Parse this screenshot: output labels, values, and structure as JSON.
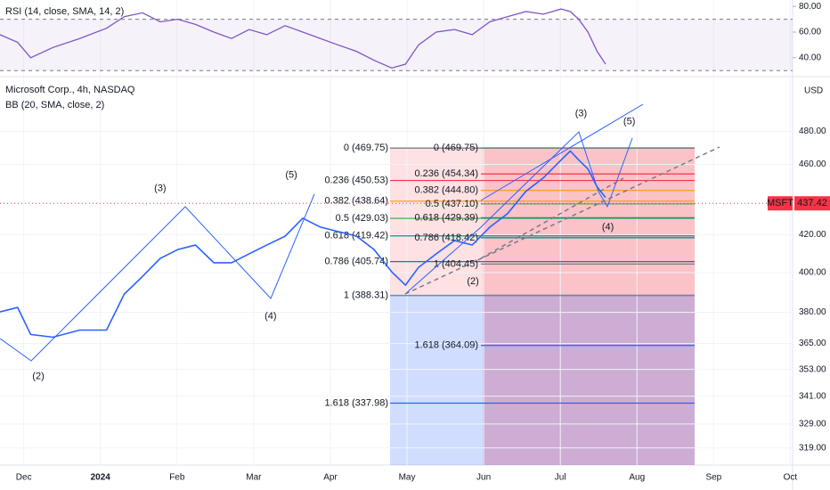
{
  "chart_data": {
    "type": "line",
    "title": "Microsoft Corp., 4h, NASDAQ",
    "subtitle": "BB (20, SMA, close, 2)",
    "currency": "USD",
    "symbol": "MSFT",
    "last_price": 437.42,
    "last_price_label": "437.42",
    "log_scale": true,
    "grid": true,
    "color": "#2962ff",
    "x": [
      -0.31,
      -0.08,
      0.09,
      0.38,
      0.73,
      1.08,
      1.31,
      1.55,
      1.78,
      2.01,
      2.24,
      2.48,
      2.71,
      2.94,
      3.17,
      3.41,
      3.64,
      3.87,
      4.1,
      4.34,
      4.57,
      4.8,
      4.98,
      5.15,
      5.38,
      5.62,
      5.85,
      6.08,
      6.31,
      6.55,
      6.78,
      7.01,
      7.13,
      7.24,
      7.36,
      7.48,
      7.59
    ],
    "values": [
      380.2,
      382.4,
      369.3,
      368.0,
      371.4,
      371.4,
      389.0,
      398.1,
      407.4,
      412.1,
      414.5,
      405.1,
      405.1,
      409.8,
      414.5,
      419.3,
      429.1,
      424.2,
      421.8,
      419.3,
      412.1,
      400.4,
      393.6,
      402.7,
      409.8,
      416.9,
      414.5,
      424.2,
      431.6,
      444.2,
      452.1,
      462.6,
      468.0,
      462.6,
      457.3,
      446.8,
      440.7
    ],
    "xlim": [
      -0.31,
      10.03
    ],
    "ylim": [
      312,
      514
    ],
    "xticks": [
      {
        "value": 0,
        "label": "Dec"
      },
      {
        "value": 1,
        "label": "2024"
      },
      {
        "value": 2,
        "label": "Feb"
      },
      {
        "value": 3,
        "label": "Mar"
      },
      {
        "value": 4,
        "label": "Apr"
      },
      {
        "value": 5,
        "label": "May"
      },
      {
        "value": 6,
        "label": "Jun"
      },
      {
        "value": 7,
        "label": "Jul"
      },
      {
        "value": 8,
        "label": "Aug"
      },
      {
        "value": 9,
        "label": "Sep"
      },
      {
        "value": 10,
        "label": "Oct"
      }
    ],
    "yticks": [
      {
        "value": 319,
        "label": "319.00"
      },
      {
        "value": 329,
        "label": "329.00"
      },
      {
        "value": 341,
        "label": "341.00"
      },
      {
        "value": 353,
        "label": "353.00"
      },
      {
        "value": 365,
        "label": "365.00"
      },
      {
        "value": 380,
        "label": "380.00"
      },
      {
        "value": 400,
        "label": "400.00"
      },
      {
        "value": 420,
        "label": "420.00"
      },
      {
        "value": 460,
        "label": "460.00"
      },
      {
        "value": 480,
        "label": "480.00"
      }
    ],
    "fib_groups": [
      {
        "levels": [
          {
            "label": "0 (469.75)",
            "price": 469.75,
            "color": "#787b86"
          },
          {
            "label": "0.236 (450.53)",
            "price": 450.53,
            "color": "#f23645"
          },
          {
            "label": "0.382 (438.64)",
            "price": 438.64,
            "color": "#ff9800"
          },
          {
            "label": "0.5 (429.03)",
            "price": 429.03,
            "color": "#4caf50"
          },
          {
            "label": "0.618 (419.42)",
            "price": 419.42,
            "color": "#089981"
          },
          {
            "label": "0.786 (405.74)",
            "price": 405.74,
            "color": "#00897b"
          },
          {
            "label": "1 (388.31)",
            "price": 388.31,
            "color": "#787b86"
          },
          {
            "label": "1.618 (337.98)",
            "price": 337.98,
            "color": "#2962ff"
          }
        ]
      },
      {
        "levels": [
          {
            "label": "0 (469.75)",
            "price": 469.75,
            "color": "#787b86"
          },
          {
            "label": "0.236 (454.34)",
            "price": 454.34,
            "color": "#f23645"
          },
          {
            "label": "0.382 (444.80)",
            "price": 444.8,
            "color": "#ff9800"
          },
          {
            "label": "0.5 (437.10)",
            "price": 437.1,
            "color": "#4caf50"
          },
          {
            "label": "0.618 (429.39)",
            "price": 429.39,
            "color": "#089981"
          },
          {
            "label": "0.786 (418.42)",
            "price": 418.42,
            "color": "#00897b"
          },
          {
            "label": "1 (404.45)",
            "price": 404.45,
            "color": "#787b86"
          },
          {
            "label": "1.618 (364.09)",
            "price": 364.09,
            "color": "#2962ff"
          }
        ]
      }
    ],
    "wave_labels": [
      {
        "label": "(2)",
        "x": 0.19,
        "price": 349.8
      },
      {
        "label": "(3)",
        "x": 1.78,
        "price": 445.8
      },
      {
        "label": "(4)",
        "x": 3.22,
        "price": 378.0
      },
      {
        "label": "(5)",
        "x": 3.49,
        "price": 453.6
      },
      {
        "label": "(2)",
        "x": 5.86,
        "price": 395.4
      },
      {
        "label": "(3)",
        "x": 7.27,
        "price": 491.2
      },
      {
        "label": "(4)",
        "x": 7.62,
        "price": 424.2
      },
      {
        "label": "(5)",
        "x": 7.9,
        "price": 486.1
      }
    ],
    "rsi": {
      "title": "RSI (14, close, SMA, 14, 2)",
      "color": "#7e57c2",
      "values": [
        58,
        52,
        40,
        48,
        55,
        63,
        72,
        75,
        68,
        70,
        66,
        60,
        55,
        62,
        58,
        65,
        60,
        55,
        50,
        45,
        38,
        32,
        35,
        50,
        60,
        62,
        58,
        68,
        72,
        76,
        74,
        78,
        76,
        70,
        60,
        45,
        35
      ],
      "ylim": [
        26,
        85
      ],
      "yticks": [
        {
          "value": 40,
          "label": "40.00"
        },
        {
          "value": 60,
          "label": "60.00"
        },
        {
          "value": 80,
          "label": "80.00"
        }
      ],
      "band": [
        30,
        70
      ]
    }
  }
}
